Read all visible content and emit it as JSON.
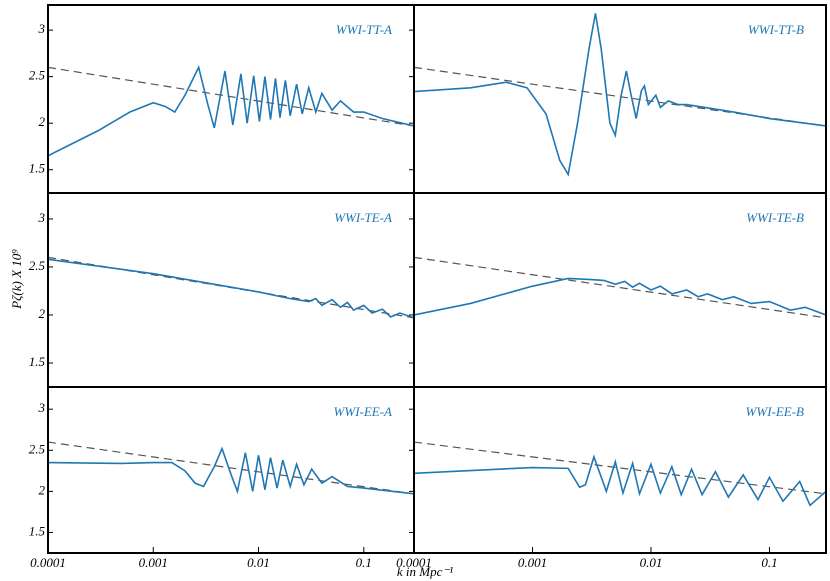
{
  "chart_data": [
    {
      "type": "line",
      "annotation": "WWI-TT-A",
      "color": "#1f77b4",
      "xscale": "log",
      "xlim": [
        0.0001,
        0.3
      ],
      "ylim": [
        1.25,
        3.27
      ],
      "yticks": [
        1.5,
        2,
        2.5,
        3
      ],
      "x": [
        0.0001,
        0.0003,
        0.0006,
        0.001,
        0.0013,
        0.0016,
        0.002,
        0.0027,
        0.0033,
        0.0038,
        0.0048,
        0.0057,
        0.0068,
        0.0078,
        0.009,
        0.0102,
        0.0115,
        0.013,
        0.0145,
        0.016,
        0.018,
        0.02,
        0.023,
        0.026,
        0.03,
        0.035,
        0.04,
        0.05,
        0.06,
        0.08,
        0.1,
        0.15,
        0.3
      ],
      "values": [
        1.65,
        1.92,
        2.12,
        2.22,
        2.18,
        2.12,
        2.3,
        2.6,
        2.2,
        1.95,
        2.56,
        1.98,
        2.53,
        2.0,
        2.51,
        2.02,
        2.5,
        2.04,
        2.48,
        2.06,
        2.46,
        2.08,
        2.42,
        2.1,
        2.38,
        2.12,
        2.32,
        2.14,
        2.24,
        2.12,
        2.12,
        2.05,
        1.97
      ],
      "reference": {
        "x": [
          0.0001,
          0.3
        ],
        "values": [
          2.6,
          1.97
        ],
        "color": "#555555"
      }
    },
    {
      "type": "line",
      "annotation": "WWI-TT-B",
      "color": "#1f77b4",
      "xscale": "log",
      "xlim": [
        0.0001,
        0.3
      ],
      "ylim": [
        1.25,
        3.27
      ],
      "x": [
        0.0001,
        0.0003,
        0.0006,
        0.0009,
        0.0013,
        0.0017,
        0.002,
        0.0024,
        0.003,
        0.0034,
        0.0038,
        0.0045,
        0.005,
        0.0056,
        0.0062,
        0.0068,
        0.0075,
        0.0083,
        0.0088,
        0.0095,
        0.011,
        0.012,
        0.014,
        0.017,
        0.02,
        0.05,
        0.1,
        0.3
      ],
      "values": [
        2.34,
        2.38,
        2.44,
        2.38,
        2.1,
        1.6,
        1.45,
        2.0,
        2.8,
        3.18,
        2.8,
        2.0,
        1.87,
        2.3,
        2.56,
        2.3,
        2.05,
        2.35,
        2.4,
        2.2,
        2.3,
        2.17,
        2.24,
        2.2,
        2.2,
        2.12,
        2.05,
        1.97
      ],
      "reference": {
        "x": [
          0.0001,
          0.3
        ],
        "values": [
          2.6,
          1.97
        ],
        "color": "#555555"
      }
    },
    {
      "type": "line",
      "annotation": "WWI-TE-A",
      "ylabel": "Pζ(k) X 10⁹",
      "color": "#1f77b4",
      "xscale": "log",
      "xlim": [
        0.0001,
        0.3
      ],
      "ylim": [
        1.25,
        3.27
      ],
      "yticks": [
        1.5,
        2,
        2.5,
        3
      ],
      "x": [
        0.0001,
        0.001,
        0.01,
        0.02,
        0.03,
        0.035,
        0.04,
        0.05,
        0.06,
        0.07,
        0.08,
        0.1,
        0.12,
        0.15,
        0.18,
        0.22,
        0.3
      ],
      "values": [
        2.58,
        2.43,
        2.24,
        2.17,
        2.14,
        2.17,
        2.1,
        2.16,
        2.08,
        2.13,
        2.05,
        2.1,
        2.02,
        2.06,
        1.98,
        2.02,
        1.97
      ],
      "reference": {
        "x": [
          0.0001,
          0.3
        ],
        "values": [
          2.6,
          1.97
        ],
        "color": "#555555"
      }
    },
    {
      "type": "line",
      "annotation": "WWI-TE-B",
      "color": "#1f77b4",
      "xscale": "log",
      "xlim": [
        0.0001,
        0.3
      ],
      "ylim": [
        1.25,
        3.27
      ],
      "x": [
        0.0001,
        0.0003,
        0.001,
        0.002,
        0.003,
        0.004,
        0.005,
        0.006,
        0.007,
        0.008,
        0.01,
        0.012,
        0.015,
        0.02,
        0.025,
        0.03,
        0.04,
        0.05,
        0.07,
        0.1,
        0.15,
        0.2,
        0.3
      ],
      "values": [
        2.0,
        2.12,
        2.3,
        2.38,
        2.37,
        2.36,
        2.32,
        2.35,
        2.29,
        2.33,
        2.26,
        2.3,
        2.22,
        2.26,
        2.19,
        2.22,
        2.16,
        2.19,
        2.12,
        2.14,
        2.05,
        2.08,
        2.0
      ],
      "reference": {
        "x": [
          0.0001,
          0.3
        ],
        "values": [
          2.6,
          1.97
        ],
        "color": "#555555"
      }
    },
    {
      "type": "line",
      "annotation": "WWI-EE-A",
      "xlabel": "k in Mpc⁻¹",
      "color": "#1f77b4",
      "xscale": "log",
      "xlim": [
        0.0001,
        0.3
      ],
      "ylim": [
        1.25,
        3.27
      ],
      "yticks": [
        1.5,
        2,
        2.5,
        3
      ],
      "xticks": [
        0.0001,
        0.001,
        0.01,
        0.1
      ],
      "x": [
        0.0001,
        0.0005,
        0.001,
        0.0015,
        0.002,
        0.0025,
        0.003,
        0.0038,
        0.0045,
        0.0055,
        0.0063,
        0.0075,
        0.0088,
        0.01,
        0.0115,
        0.013,
        0.015,
        0.017,
        0.02,
        0.023,
        0.027,
        0.032,
        0.04,
        0.05,
        0.07,
        0.1,
        0.3
      ],
      "values": [
        2.35,
        2.34,
        2.35,
        2.35,
        2.25,
        2.1,
        2.06,
        2.3,
        2.52,
        2.2,
        2.0,
        2.47,
        2.0,
        2.44,
        2.02,
        2.41,
        2.04,
        2.38,
        2.06,
        2.33,
        2.08,
        2.27,
        2.1,
        2.18,
        2.06,
        2.04,
        1.97
      ],
      "reference": {
        "x": [
          0.0001,
          0.3
        ],
        "values": [
          2.6,
          1.97
        ],
        "color": "#555555"
      }
    },
    {
      "type": "line",
      "annotation": "WWI-EE-B",
      "color": "#1f77b4",
      "xscale": "log",
      "xlim": [
        0.0001,
        0.3
      ],
      "ylim": [
        1.25,
        3.27
      ],
      "xticks": [
        0.0001,
        0.001,
        0.01,
        0.1
      ],
      "x": [
        0.0001,
        0.001,
        0.002,
        0.0025,
        0.0028,
        0.0033,
        0.0042,
        0.005,
        0.0058,
        0.007,
        0.008,
        0.01,
        0.012,
        0.015,
        0.018,
        0.022,
        0.027,
        0.035,
        0.045,
        0.06,
        0.08,
        0.1,
        0.13,
        0.18,
        0.22,
        0.3
      ],
      "values": [
        2.22,
        2.29,
        2.28,
        2.05,
        2.08,
        2.42,
        2.0,
        2.36,
        1.98,
        2.34,
        1.97,
        2.33,
        1.98,
        2.3,
        1.96,
        2.27,
        1.96,
        2.24,
        1.93,
        2.2,
        1.9,
        2.17,
        1.88,
        2.12,
        1.83,
        2.0
      ],
      "reference": {
        "x": [
          0.0001,
          0.3
        ],
        "values": [
          2.6,
          1.97
        ],
        "color": "#555555"
      }
    }
  ]
}
